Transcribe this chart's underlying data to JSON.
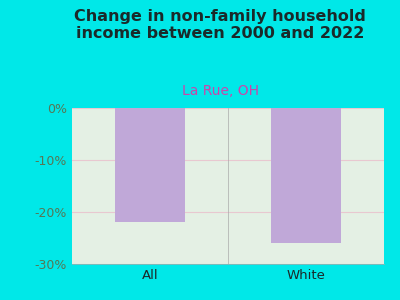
{
  "categories": [
    "All",
    "White"
  ],
  "values": [
    -22,
    -26
  ],
  "bar_color": "#c0a8d8",
  "title": "Change in non-family household\nincome between 2000 and 2022",
  "subtitle": "La Rue, OH",
  "title_color": "#1a2a2a",
  "subtitle_color": "#cc44aa",
  "ylim": [
    -30,
    0
  ],
  "yticks": [
    0,
    -10,
    -20,
    -30
  ],
  "yticklabels": [
    "0%",
    "-10%",
    "-20%",
    "-30%"
  ],
  "outer_bg": "#00e8e8",
  "plot_bg_left": "#ddeedd",
  "plot_bg_right": "#f5f5f5",
  "grid_color": "#e8c8d0",
  "title_fontsize": 11.5,
  "subtitle_fontsize": 10,
  "bar_width": 0.45,
  "tick_label_color": "#557755"
}
